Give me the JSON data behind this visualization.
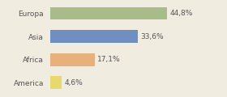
{
  "categories": [
    "Europa",
    "Asia",
    "Africa",
    "America"
  ],
  "values": [
    44.8,
    33.6,
    17.1,
    4.6
  ],
  "labels": [
    "44,8%",
    "33,6%",
    "17,1%",
    "4,6%"
  ],
  "bar_colors": [
    "#a8bc8a",
    "#6e8fbf",
    "#e8b07a",
    "#e8d96e"
  ],
  "background_color": "#f0ece0",
  "xlim": [
    0,
    65
  ],
  "bar_height": 0.55,
  "label_fontsize": 6.5,
  "category_fontsize": 6.5
}
